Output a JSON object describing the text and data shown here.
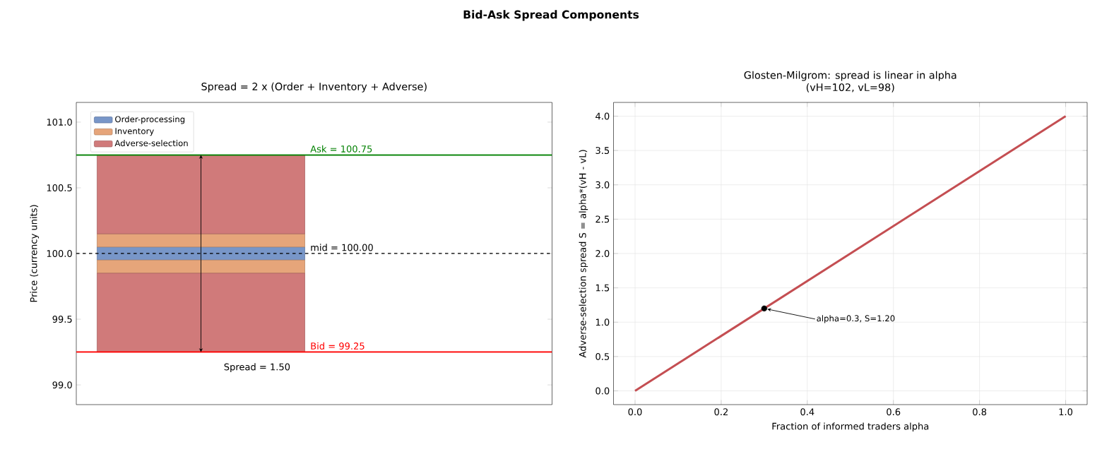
{
  "chart_data": [
    {
      "type": "bar",
      "title": "Bid-Ask Spread Components",
      "subtitle": "Spread = 2 x (Order + Inventory + Adverse)",
      "ylabel": "Price (currency units)",
      "categories": [
        null
      ],
      "series": [
        {
          "name": "Order-processing",
          "color": "#7896c8",
          "base": [
            99.95
          ],
          "values": [
            0.1
          ]
        },
        {
          "name": "Inventory",
          "color": "#e6a57a",
          "base": [
            100.05
          ],
          "values": [
            0.1
          ]
        },
        {
          "name": "Adverse-selection",
          "color": "#d07a7a",
          "base": [
            100.15
          ],
          "values": [
            0.6
          ]
        },
        {
          "color": "#e6a57a",
          "base": [
            99.85
          ],
          "values": [
            0.1
          ]
        },
        {
          "color": "#d07a7a",
          "base": [
            99.25
          ],
          "values": [
            0.6
          ]
        }
      ],
      "ylim": [
        98.85,
        101.15
      ],
      "yticks": [
        {
          "value": 99.0,
          "label": "99.0"
        },
        {
          "value": 99.5,
          "label": "99.5"
        },
        {
          "value": 100.0,
          "label": "100.0"
        },
        {
          "value": 100.5,
          "label": "100.5"
        },
        {
          "value": 101.0,
          "label": "101.0"
        }
      ],
      "ref_lines": [
        {
          "axis": "y",
          "value": 100.75,
          "label": "Ask = 100.75",
          "color": "#008000"
        },
        {
          "axis": "y",
          "value": 99.25,
          "label": "Bid = 99.25",
          "color": "#ff0000"
        },
        {
          "axis": "y",
          "value": 100.0,
          "label": "mid = 100.00",
          "color": "#000000",
          "line_style": "dashed"
        }
      ],
      "annotations": [
        "Spread = 1.50"
      ],
      "legend": "top left",
      "tick_labels": "y"
    },
    {
      "type": "line",
      "title": "Glosten-Milgrom: spread is linear in alpha",
      "subtitle": "(vH=102, vL=98)",
      "xlabel": "Fraction of informed traders  alpha",
      "ylabel": "Adverse-selection spread  S = alpha*(vH - vL)",
      "x": [
        0,
        1
      ],
      "series": [
        {
          "color": "#c44e52",
          "values": [
            0,
            4
          ],
          "marker": "none"
        },
        {
          "type": "scatter",
          "color": "#000000",
          "x": [
            0.3
          ],
          "values": [
            1.2
          ],
          "marker": "circle"
        }
      ],
      "xlim": [
        -0.05,
        1.05
      ],
      "ylim": [
        -0.2,
        4.2
      ],
      "xticks": [
        {
          "value": 0.0,
          "label": "0.0"
        },
        {
          "value": 0.2,
          "label": "0.2"
        },
        {
          "value": 0.4,
          "label": "0.4"
        },
        {
          "value": 0.6,
          "label": "0.6"
        },
        {
          "value": 0.8,
          "label": "0.8"
        },
        {
          "value": 1.0,
          "label": "1.0"
        }
      ],
      "yticks": [
        {
          "value": 0.0,
          "label": "0.0"
        },
        {
          "value": 0.5,
          "label": "0.5"
        },
        {
          "value": 1.0,
          "label": "1.0"
        },
        {
          "value": 1.5,
          "label": "1.5"
        },
        {
          "value": 2.0,
          "label": "2.0"
        },
        {
          "value": 2.5,
          "label": "2.5"
        },
        {
          "value": 3.0,
          "label": "3.0"
        },
        {
          "value": 3.5,
          "label": "3.5"
        },
        {
          "value": 4.0,
          "label": "4.0"
        }
      ],
      "annotations": [
        {
          "text": "alpha=0.3, S=1.20",
          "x": 0.3,
          "y": 1.2
        }
      ],
      "grid": true
    }
  ]
}
